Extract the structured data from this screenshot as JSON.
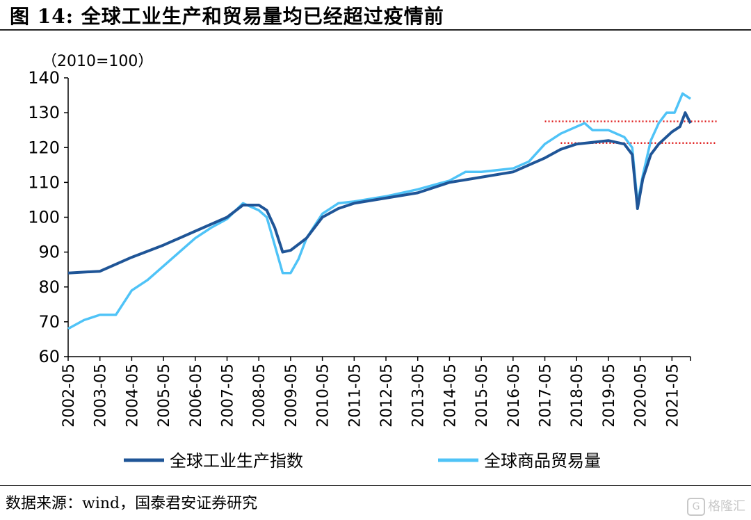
{
  "header": {
    "title": "图 14:  全球工业生产和贸易量均已经超过疫情前"
  },
  "footer": {
    "source": "数据来源：wind，国泰君安证券研究",
    "watermark": "格隆汇",
    "watermark_icon": "G"
  },
  "chart_data": {
    "type": "line",
    "unit_label": "（2010=100）",
    "ylim": [
      60,
      140
    ],
    "yticks": [
      60,
      70,
      80,
      90,
      100,
      110,
      120,
      130,
      140
    ],
    "xlim": [
      "2002-05",
      "2021-12"
    ],
    "x_tick_labels": [
      "2002-05",
      "2003-05",
      "2004-05",
      "2005-05",
      "2006-05",
      "2007-05",
      "2008-05",
      "2009-05",
      "2010-05",
      "2011-05",
      "2012-05",
      "2013-05",
      "2014-05",
      "2015-05",
      "2016-05",
      "2017-05",
      "2018-05",
      "2019-05",
      "2020-05",
      "2021-05"
    ],
    "grid": false,
    "legend_position": "bottom",
    "series": [
      {
        "name": "全球工业生产指数",
        "color": "#1f5597",
        "points": [
          [
            "2002-05",
            84
          ],
          [
            "2003-05",
            84.5
          ],
          [
            "2004-05",
            88.5
          ],
          [
            "2005-05",
            92
          ],
          [
            "2006-05",
            96
          ],
          [
            "2007-05",
            100
          ],
          [
            "2007-11",
            103.5
          ],
          [
            "2008-05",
            103.5
          ],
          [
            "2008-08",
            102
          ],
          [
            "2008-11",
            97
          ],
          [
            "2009-02",
            90
          ],
          [
            "2009-05",
            90.5
          ],
          [
            "2009-11",
            94
          ],
          [
            "2010-05",
            100
          ],
          [
            "2010-11",
            102.5
          ],
          [
            "2011-05",
            104
          ],
          [
            "2012-05",
            105.5
          ],
          [
            "2013-05",
            107
          ],
          [
            "2014-05",
            110
          ],
          [
            "2015-05",
            111.5
          ],
          [
            "2016-05",
            113
          ],
          [
            "2017-05",
            117
          ],
          [
            "2017-11",
            119.5
          ],
          [
            "2018-05",
            121
          ],
          [
            "2018-11",
            121.5
          ],
          [
            "2019-05",
            122
          ],
          [
            "2019-11",
            121
          ],
          [
            "2020-02",
            118
          ],
          [
            "2020-04",
            102.5
          ],
          [
            "2020-06",
            111
          ],
          [
            "2020-09",
            118
          ],
          [
            "2020-12",
            121
          ],
          [
            "2021-05",
            124.5
          ],
          [
            "2021-08",
            126
          ],
          [
            "2021-10",
            130
          ],
          [
            "2021-12",
            127
          ]
        ]
      },
      {
        "name": "全球商品贸易量",
        "color": "#4fc3f7",
        "points": [
          [
            "2002-05",
            68
          ],
          [
            "2002-11",
            70.5
          ],
          [
            "2003-05",
            72
          ],
          [
            "2003-11",
            72
          ],
          [
            "2004-05",
            79
          ],
          [
            "2004-11",
            82
          ],
          [
            "2005-05",
            86
          ],
          [
            "2005-11",
            90
          ],
          [
            "2006-05",
            94
          ],
          [
            "2006-11",
            97
          ],
          [
            "2007-05",
            99.5
          ],
          [
            "2007-11",
            104
          ],
          [
            "2008-05",
            102
          ],
          [
            "2008-08",
            100
          ],
          [
            "2008-11",
            92
          ],
          [
            "2009-02",
            84
          ],
          [
            "2009-05",
            84
          ],
          [
            "2009-08",
            88
          ],
          [
            "2009-11",
            94
          ],
          [
            "2010-05",
            101
          ],
          [
            "2010-11",
            104
          ],
          [
            "2011-05",
            104.5
          ],
          [
            "2012-05",
            106
          ],
          [
            "2013-05",
            108
          ],
          [
            "2014-05",
            110.5
          ],
          [
            "2014-11",
            113
          ],
          [
            "2015-05",
            113
          ],
          [
            "2016-05",
            114
          ],
          [
            "2016-11",
            116
          ],
          [
            "2017-05",
            121
          ],
          [
            "2017-11",
            124
          ],
          [
            "2018-05",
            126
          ],
          [
            "2018-08",
            127
          ],
          [
            "2018-11",
            125
          ],
          [
            "2019-05",
            125
          ],
          [
            "2019-11",
            123
          ],
          [
            "2020-02",
            120
          ],
          [
            "2020-04",
            104
          ],
          [
            "2020-06",
            112
          ],
          [
            "2020-09",
            122
          ],
          [
            "2020-12",
            127
          ],
          [
            "2021-03",
            130
          ],
          [
            "2021-06",
            130
          ],
          [
            "2021-09",
            135.5
          ],
          [
            "2021-12",
            134
          ]
        ]
      }
    ],
    "reference_lines": [
      {
        "y": 127.5,
        "from": "2017-05",
        "to": "2021-12",
        "color": "#e02020",
        "style": "dotted"
      },
      {
        "y": 121.3,
        "from": "2017-11",
        "to": "2021-12",
        "color": "#e02020",
        "style": "dotted"
      }
    ]
  }
}
